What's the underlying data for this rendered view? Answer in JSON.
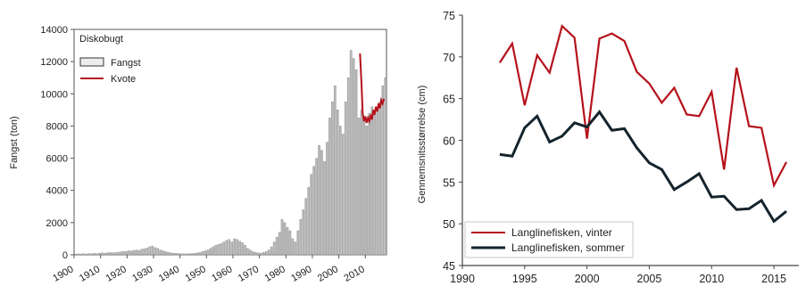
{
  "chart_data": [
    {
      "type": "bar",
      "title": "Diskobugt",
      "xlabel": "",
      "ylabel": "Fangst (ton)",
      "xlim": [
        1900,
        2018
      ],
      "ylim": [
        0,
        14000
      ],
      "x_ticks": [
        1900,
        1910,
        1920,
        1930,
        1940,
        1950,
        1960,
        1970,
        1980,
        1990,
        2000,
        2010
      ],
      "y_ticks": [
        0,
        2000,
        4000,
        6000,
        8000,
        10000,
        12000,
        14000
      ],
      "legend": [
        {
          "name": "Fangst",
          "color": "#b9b9b9",
          "kind": "box"
        },
        {
          "name": "Kvote",
          "color": "#b5121b",
          "kind": "line"
        }
      ],
      "legend_position": "top-left",
      "grid": false,
      "series": [
        {
          "name": "Fangst",
          "color": "#b9b9b9",
          "x": [
            1900,
            1901,
            1902,
            1903,
            1904,
            1905,
            1906,
            1907,
            1908,
            1909,
            1910,
            1911,
            1912,
            1913,
            1914,
            1915,
            1916,
            1917,
            1918,
            1919,
            1920,
            1921,
            1922,
            1923,
            1924,
            1925,
            1926,
            1927,
            1928,
            1929,
            1930,
            1931,
            1932,
            1933,
            1934,
            1935,
            1936,
            1937,
            1938,
            1939,
            1940,
            1941,
            1942,
            1943,
            1944,
            1945,
            1946,
            1947,
            1948,
            1949,
            1950,
            1951,
            1952,
            1953,
            1954,
            1955,
            1956,
            1957,
            1958,
            1959,
            1960,
            1961,
            1962,
            1963,
            1964,
            1965,
            1966,
            1967,
            1968,
            1969,
            1970,
            1971,
            1972,
            1973,
            1974,
            1975,
            1976,
            1977,
            1978,
            1979,
            1980,
            1981,
            1982,
            1983,
            1984,
            1985,
            1986,
            1987,
            1988,
            1989,
            1990,
            1991,
            1992,
            1993,
            1994,
            1995,
            1996,
            1997,
            1998,
            1999,
            2000,
            2001,
            2002,
            2003,
            2004,
            2005,
            2006,
            2007,
            2008,
            2009,
            2010,
            2011,
            2012,
            2013,
            2014,
            2015,
            2016,
            2017
          ],
          "values": [
            50,
            60,
            40,
            70,
            50,
            80,
            60,
            90,
            70,
            100,
            120,
            100,
            130,
            150,
            120,
            140,
            160,
            180,
            200,
            210,
            250,
            230,
            280,
            300,
            260,
            350,
            380,
            420,
            500,
            550,
            450,
            400,
            300,
            250,
            200,
            150,
            120,
            100,
            90,
            80,
            70,
            60,
            60,
            70,
            80,
            100,
            120,
            150,
            200,
            250,
            300,
            400,
            500,
            600,
            650,
            700,
            800,
            900,
            950,
            800,
            1000,
            950,
            850,
            750,
            600,
            400,
            300,
            200,
            150,
            120,
            100,
            150,
            200,
            300,
            500,
            800,
            1100,
            1400,
            2200,
            2000,
            1700,
            1500,
            1000,
            800,
            1500,
            2200,
            2800,
            3500,
            4200,
            5000,
            5500,
            6000,
            6800,
            6500,
            5800,
            7000,
            8500,
            9500,
            10500,
            9000,
            8000,
            7500,
            9500,
            11000,
            12700,
            12200,
            11500,
            8500,
            9000,
            8500,
            8000,
            8800,
            9200,
            8700,
            9000,
            9500,
            10500,
            11000
          ]
        },
        {
          "name": "Kvote",
          "color": "#b5121b",
          "x": [
            2008,
            2008.6,
            2009,
            2009.5,
            2010,
            2010.5,
            2011,
            2011.5,
            2012,
            2012.5,
            2013,
            2013.5,
            2014,
            2014.5,
            2015,
            2015.5,
            2016,
            2016.5,
            2017
          ],
          "values": [
            12500,
            10500,
            8800,
            8300,
            8600,
            8200,
            8500,
            8300,
            8700,
            8400,
            9000,
            8700,
            9200,
            8900,
            9400,
            9100,
            9600,
            9400,
            9700
          ]
        }
      ]
    },
    {
      "type": "line",
      "title": "",
      "xlabel": "",
      "ylabel": "Gennemsnitsstørrelse (cm)",
      "xlim": [
        1990,
        2017
      ],
      "ylim": [
        45,
        75
      ],
      "x_ticks": [
        1990,
        1995,
        2000,
        2005,
        2010,
        2015
      ],
      "y_ticks": [
        45,
        50,
        55,
        60,
        65,
        70,
        75
      ],
      "grid": false,
      "legend_position": "bottom-left",
      "series": [
        {
          "name": "Langlinefisken, vinter",
          "color": "#b5121b",
          "x": [
            1993,
            1994,
            1995,
            1996,
            1997,
            1998,
            1999,
            2000,
            2001,
            2002,
            2003,
            2004,
            2005,
            2006,
            2007,
            2008,
            2009,
            2010,
            2011,
            2012,
            2013,
            2014,
            2015,
            2016
          ],
          "values": [
            69.3,
            71.6,
            64.2,
            70.2,
            68.1,
            73.7,
            72.3,
            60.2,
            72.2,
            72.8,
            71.9,
            68.2,
            66.8,
            64.5,
            66.3,
            63.1,
            62.9,
            65.8,
            56.5,
            68.7,
            61.7,
            61.5,
            54.6,
            57.4
          ]
        },
        {
          "name": "Langlinefisken, sommer",
          "color": "#15232c",
          "x": [
            1993,
            1994,
            1995,
            1996,
            1997,
            1998,
            1999,
            2000,
            2001,
            2002,
            2003,
            2004,
            2005,
            2006,
            2007,
            2008,
            2009,
            2010,
            2011,
            2012,
            2013,
            2014,
            2015,
            2016
          ],
          "values": [
            58.3,
            58.1,
            61.5,
            62.9,
            59.8,
            60.5,
            62.1,
            61.6,
            63.4,
            61.2,
            61.4,
            59.1,
            57.3,
            56.5,
            54.1,
            55.0,
            56.0,
            53.2,
            53.3,
            51.7,
            51.8,
            52.8,
            50.3,
            51.5
          ]
        }
      ]
    }
  ]
}
